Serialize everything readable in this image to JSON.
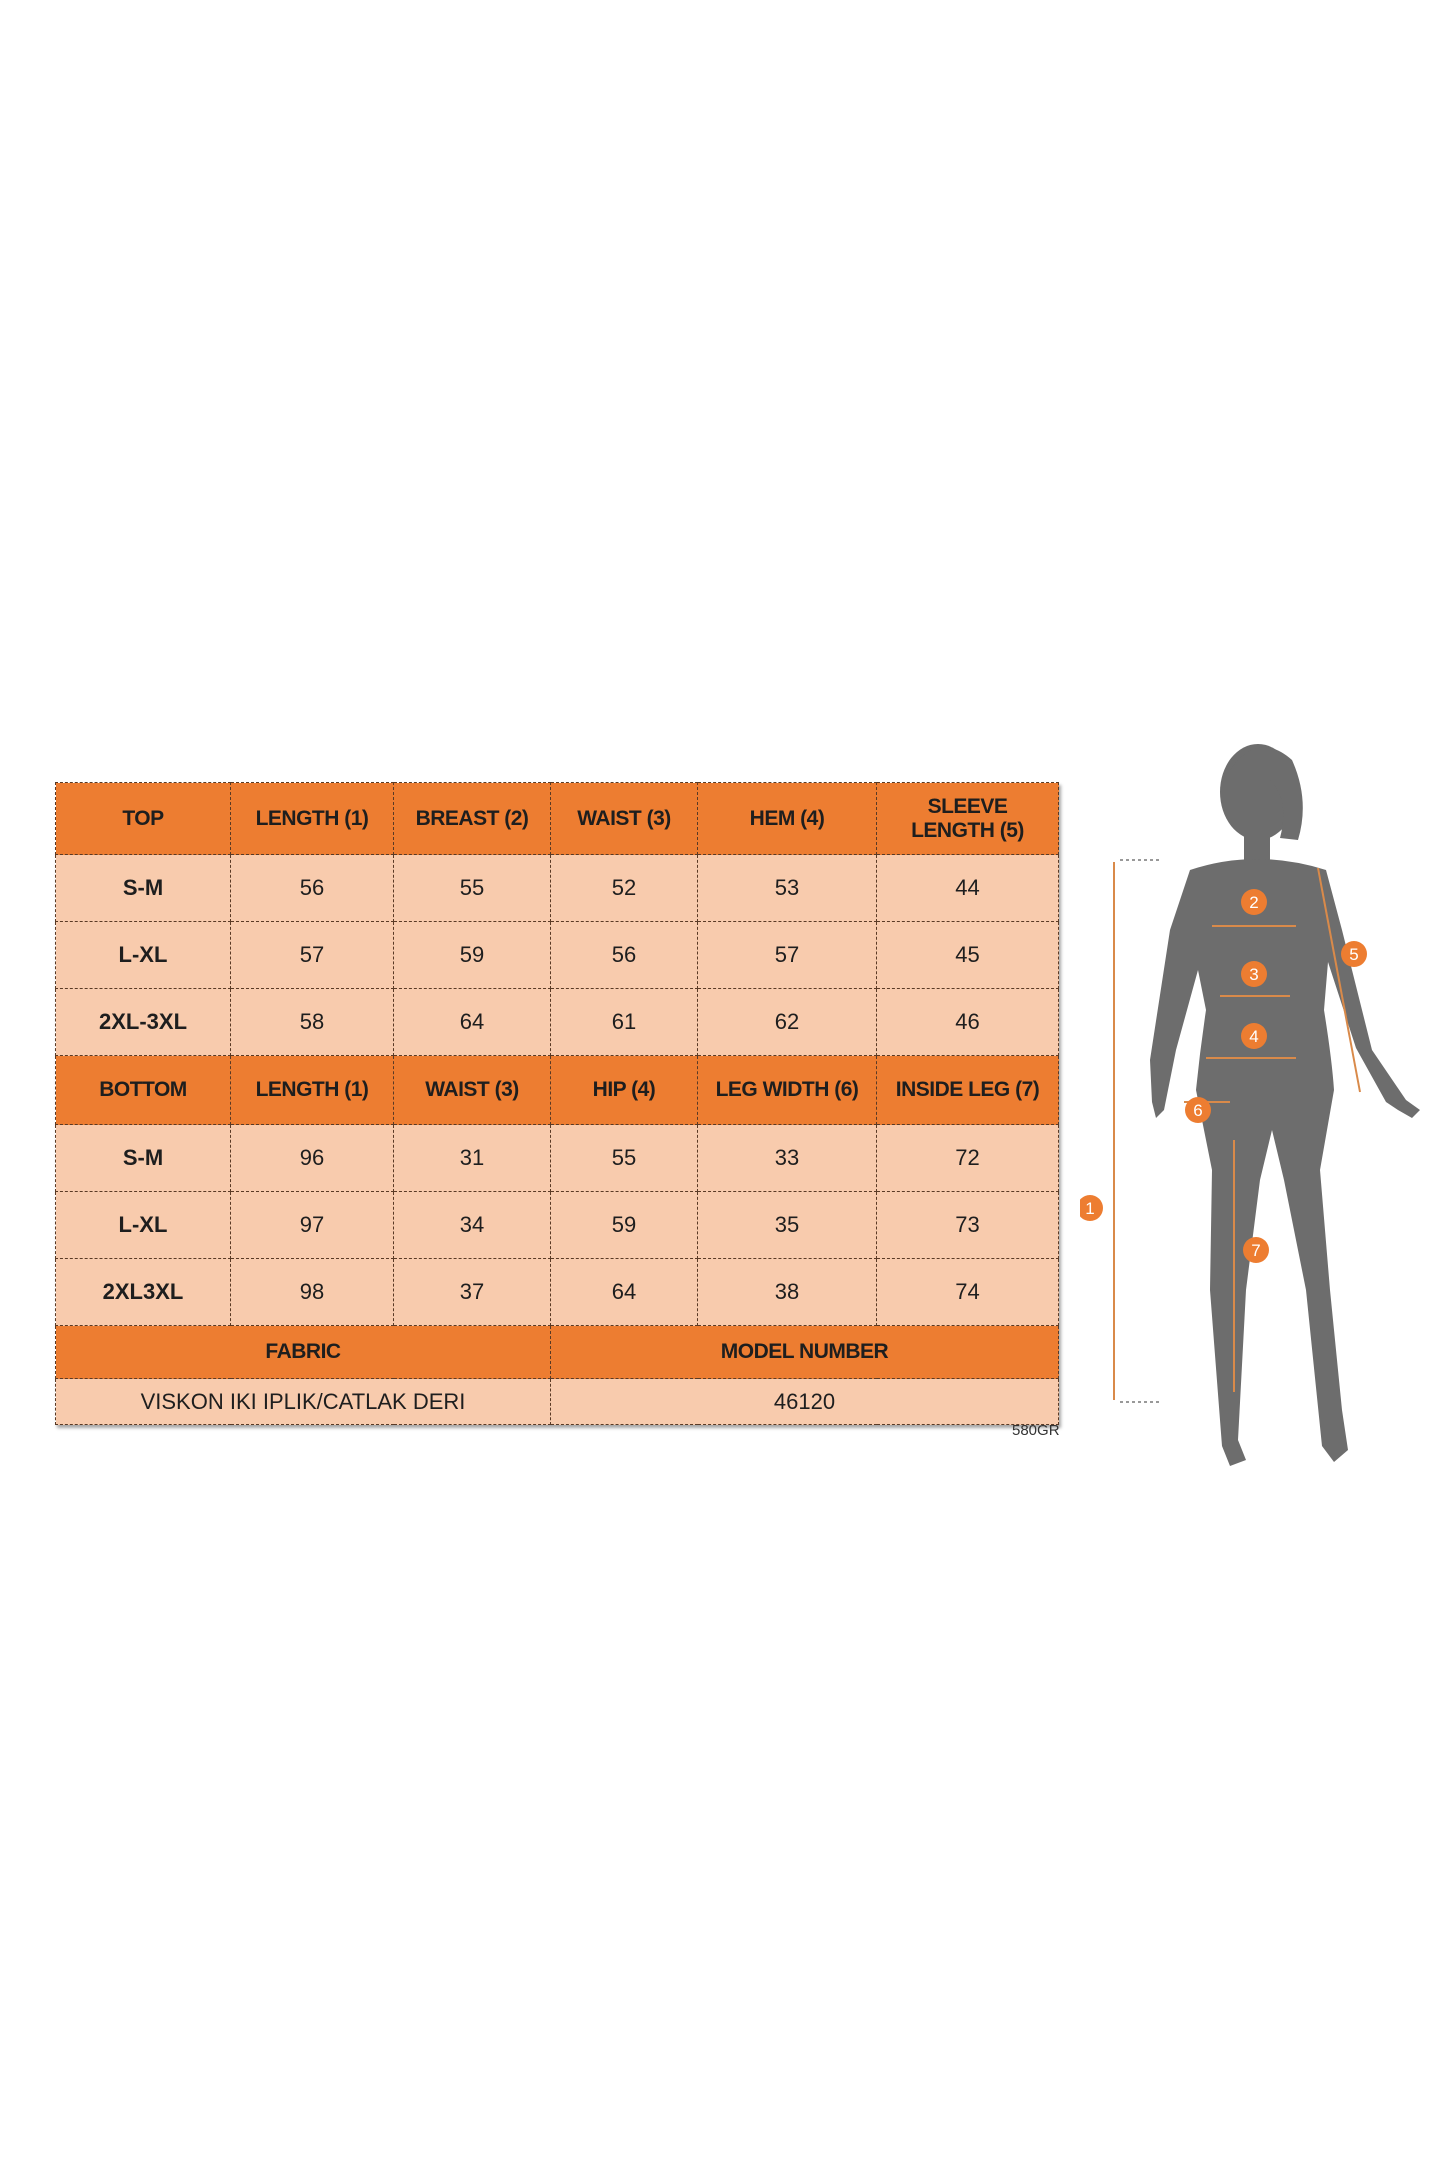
{
  "top_section": {
    "headers": [
      "TOP",
      "LENGTH (1)",
      "BREAST (2)",
      "WAIST (3)",
      "HEM (4)",
      "SLEEVE LENGTH (5)"
    ],
    "rows": [
      [
        "S-M",
        "56",
        "55",
        "52",
        "53",
        "44"
      ],
      [
        "L-XL",
        "57",
        "59",
        "56",
        "57",
        "45"
      ],
      [
        "2XL-3XL",
        "58",
        "64",
        "61",
        "62",
        "46"
      ]
    ]
  },
  "bottom_section": {
    "headers": [
      "BOTTOM",
      "LENGTH (1)",
      "WAIST (3)",
      "HIP (4)",
      "LEG WIDTH (6)",
      "INSIDE LEG (7)"
    ],
    "rows": [
      [
        "S-M",
        "96",
        "31",
        "55",
        "33",
        "72"
      ],
      [
        "L-XL",
        "97",
        "34",
        "59",
        "35",
        "73"
      ],
      [
        "2XL3XL",
        "98",
        "37",
        "64",
        "38",
        "74"
      ]
    ]
  },
  "footer": {
    "fabric_label": "FABRIC",
    "model_number_label": "MODEL NUMBER",
    "fabric_value": "VISKON IKI IPLIK/CATLAK DERI",
    "model_number_value": "46120"
  },
  "code_label": "580GR",
  "figure": {
    "markers": [
      "1",
      "2",
      "3",
      "4",
      "5",
      "6",
      "7"
    ]
  },
  "colors": {
    "header": "#ED7D31",
    "cell": "#F8CBAD",
    "silhouette": "#6d6d6d",
    "marker": "#ED7D31"
  }
}
